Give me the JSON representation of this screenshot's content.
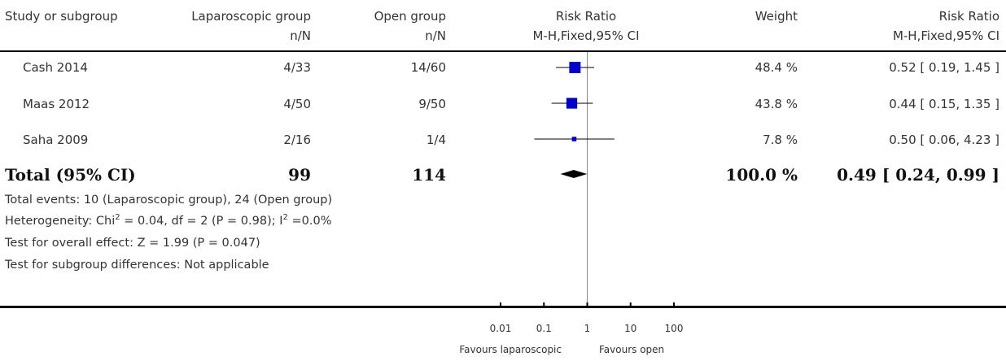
{
  "headers": {
    "study": "Study or subgroup",
    "exp_group": "Laparoscopic group",
    "ctrl_group": "Open group",
    "effect": "Risk Ratio",
    "weight": "Weight",
    "effect_ci": "Risk Ratio",
    "exp_sub": "n/N",
    "ctrl_sub": "n/N",
    "method": "M-H,Fixed,95% CI",
    "method_ci": "M-H,Fixed,95% CI"
  },
  "studies": [
    {
      "name": "Cash 2014",
      "exp": "4/33",
      "ctrl": "14/60",
      "weight": "48.4 %",
      "ci_text": "0.52 [ 0.19, 1.45 ]"
    },
    {
      "name": "Maas 2012",
      "exp": "4/50",
      "ctrl": "9/50",
      "weight": "43.8 %",
      "ci_text": "0.44 [ 0.15, 1.35 ]"
    },
    {
      "name": "Saha 2009",
      "exp": "2/16",
      "ctrl": "1/4",
      "weight": "7.8 %",
      "ci_text": "0.50 [ 0.06, 4.23 ]"
    }
  ],
  "total": {
    "label": "Total (95% CI)",
    "exp": "99",
    "ctrl": "114",
    "weight": "100.0 %",
    "ci_text": "0.49 [ 0.24, 0.99 ]"
  },
  "footnotes": {
    "events": "Total events: 10 (Laparoscopic group), 24 (Open group)",
    "het_pre": "Heterogeneity: Chi",
    "het_sup1": "2",
    "het_mid": " = 0.04, df = 2 (P = 0.98); I",
    "het_sup2": "2",
    "het_post": " =0.0%",
    "overall": "Test for overall effect: Z = 1.99 (P = 0.047)",
    "subgroup": "Test for subgroup differences: Not applicable"
  },
  "axis": {
    "favours_left": "Favours laparoscopic",
    "favours_right": "Favours open"
  },
  "chart_data": {
    "type": "forest",
    "scale": "log",
    "xlim": [
      0.01,
      100
    ],
    "ticks": [
      0.01,
      0.1,
      1,
      10,
      100
    ],
    "tick_labels": [
      "0.01",
      "0.1",
      "1",
      "10",
      "100"
    ],
    "null_line": 1,
    "marker_color": "#0000cc",
    "studies": [
      {
        "rr": 0.52,
        "lo": 0.19,
        "hi": 1.45,
        "weight": 48.4
      },
      {
        "rr": 0.44,
        "lo": 0.15,
        "hi": 1.35,
        "weight": 43.8
      },
      {
        "rr": 0.5,
        "lo": 0.06,
        "hi": 4.23,
        "weight": 7.8
      }
    ],
    "pooled": {
      "rr": 0.49,
      "lo": 0.24,
      "hi": 0.99
    }
  }
}
